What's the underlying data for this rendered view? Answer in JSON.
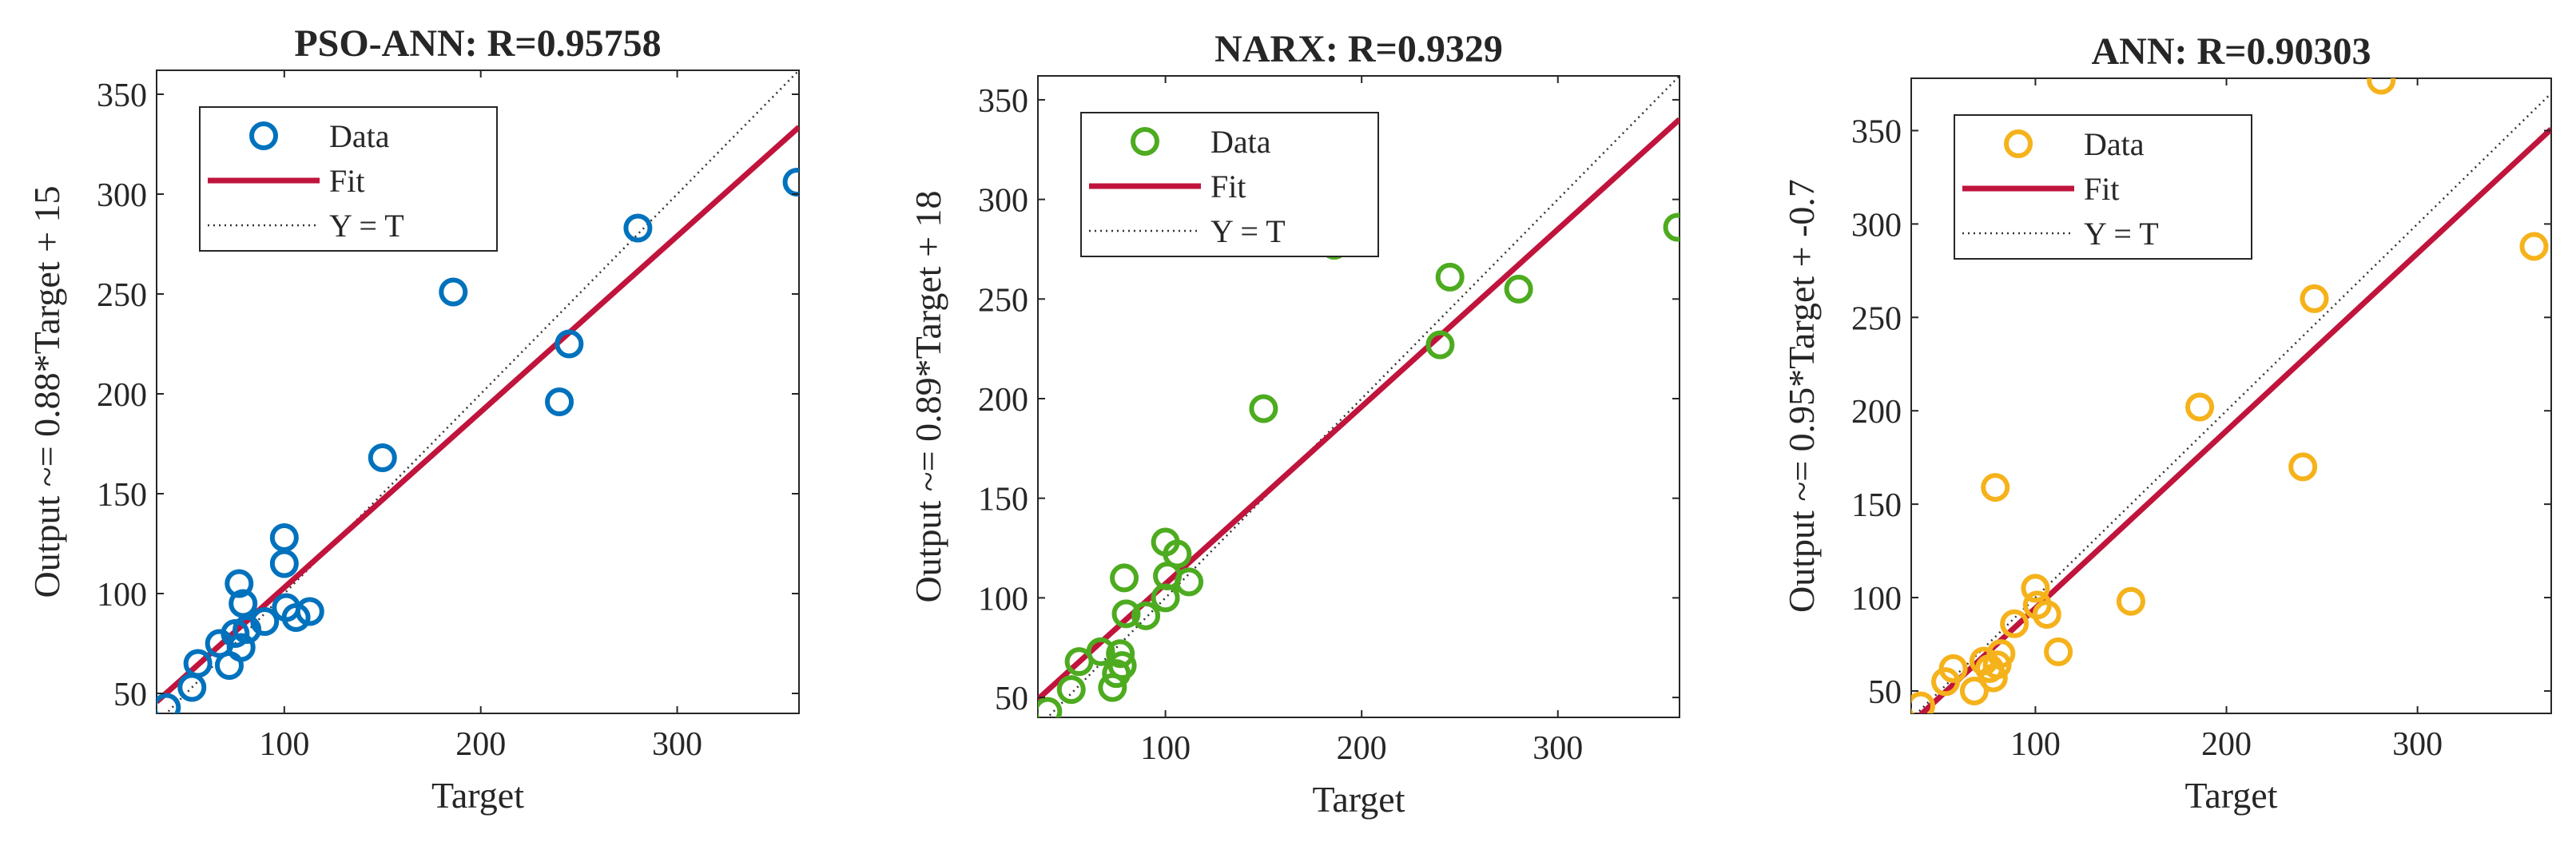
{
  "chart_data": [
    {
      "type": "scatter",
      "title": "PSO-ANN: R=0.95758",
      "xlabel": "Target",
      "ylabel": "Output ~= 0.88*Target + 15",
      "xlim": [
        35,
        362
      ],
      "ylim": [
        40,
        362
      ],
      "xticks": [
        100,
        200,
        300
      ],
      "yticks": [
        50,
        100,
        150,
        200,
        250,
        300,
        350
      ],
      "grid": false,
      "legend_position": "top-left",
      "legend": [
        "Data",
        "Fit",
        "Y = T"
      ],
      "color": "#0072BD",
      "fit": {
        "slope": 0.88,
        "intercept": 15
      },
      "points": [
        {
          "x": 40,
          "y": 43
        },
        {
          "x": 53,
          "y": 53
        },
        {
          "x": 56,
          "y": 65
        },
        {
          "x": 67,
          "y": 75
        },
        {
          "x": 72,
          "y": 64
        },
        {
          "x": 75,
          "y": 80
        },
        {
          "x": 77,
          "y": 105
        },
        {
          "x": 78,
          "y": 73
        },
        {
          "x": 79,
          "y": 95
        },
        {
          "x": 81,
          "y": 82
        },
        {
          "x": 90,
          "y": 86
        },
        {
          "x": 100,
          "y": 128
        },
        {
          "x": 100,
          "y": 115
        },
        {
          "x": 101,
          "y": 93
        },
        {
          "x": 106,
          "y": 88
        },
        {
          "x": 113,
          "y": 91
        },
        {
          "x": 150,
          "y": 168
        },
        {
          "x": 186,
          "y": 251
        },
        {
          "x": 240,
          "y": 196
        },
        {
          "x": 245,
          "y": 225
        },
        {
          "x": 280,
          "y": 283
        },
        {
          "x": 361,
          "y": 306
        }
      ]
    },
    {
      "type": "scatter",
      "title": "NARX: R=0.9329",
      "xlabel": "Target",
      "ylabel": "Output ~= 0.89*Target + 18",
      "xlim": [
        35,
        362
      ],
      "ylim": [
        40,
        362
      ],
      "xticks": [
        100,
        200,
        300
      ],
      "yticks": [
        50,
        100,
        150,
        200,
        250,
        300,
        350
      ],
      "grid": false,
      "legend_position": "top-left",
      "legend": [
        "Data",
        "Fit",
        "Y = T"
      ],
      "color": "#4DAB1F",
      "fit": {
        "slope": 0.89,
        "intercept": 18
      },
      "points": [
        {
          "x": 40,
          "y": 43
        },
        {
          "x": 52,
          "y": 54
        },
        {
          "x": 56,
          "y": 68
        },
        {
          "x": 67,
          "y": 73
        },
        {
          "x": 73,
          "y": 55
        },
        {
          "x": 75,
          "y": 62
        },
        {
          "x": 77,
          "y": 72
        },
        {
          "x": 78,
          "y": 66
        },
        {
          "x": 79,
          "y": 110
        },
        {
          "x": 80,
          "y": 92
        },
        {
          "x": 90,
          "y": 91
        },
        {
          "x": 100,
          "y": 128
        },
        {
          "x": 100,
          "y": 100
        },
        {
          "x": 101,
          "y": 111
        },
        {
          "x": 106,
          "y": 122
        },
        {
          "x": 112,
          "y": 108
        },
        {
          "x": 150,
          "y": 195
        },
        {
          "x": 186,
          "y": 277
        },
        {
          "x": 240,
          "y": 227
        },
        {
          "x": 245,
          "y": 261
        },
        {
          "x": 280,
          "y": 255
        },
        {
          "x": 361,
          "y": 286
        }
      ]
    },
    {
      "type": "scatter",
      "title": "ANN: R=0.90303",
      "xlabel": "Target",
      "ylabel": "Output ~= 0.95*Target + -0.7",
      "xlim": [
        35,
        370
      ],
      "ylim": [
        38,
        378
      ],
      "xticks": [
        100,
        200,
        300
      ],
      "yticks": [
        50,
        100,
        150,
        200,
        250,
        300,
        350
      ],
      "grid": false,
      "legend_position": "top-left",
      "legend": [
        "Data",
        "Fit",
        "Y = T"
      ],
      "color": "#F5B21B",
      "fit": {
        "slope": 0.95,
        "intercept": -0.7
      },
      "points": [
        {
          "x": 40,
          "y": 42
        },
        {
          "x": 53,
          "y": 55
        },
        {
          "x": 57,
          "y": 62
        },
        {
          "x": 68,
          "y": 50
        },
        {
          "x": 73,
          "y": 66
        },
        {
          "x": 76,
          "y": 62
        },
        {
          "x": 78,
          "y": 57
        },
        {
          "x": 79,
          "y": 159
        },
        {
          "x": 80,
          "y": 64
        },
        {
          "x": 82,
          "y": 70
        },
        {
          "x": 89,
          "y": 86
        },
        {
          "x": 100,
          "y": 105
        },
        {
          "x": 101,
          "y": 96
        },
        {
          "x": 106,
          "y": 91
        },
        {
          "x": 112,
          "y": 71
        },
        {
          "x": 150,
          "y": 98
        },
        {
          "x": 186,
          "y": 202
        },
        {
          "x": 240,
          "y": 170
        },
        {
          "x": 246,
          "y": 260
        },
        {
          "x": 281,
          "y": 377
        },
        {
          "x": 361,
          "y": 288
        }
      ]
    }
  ]
}
